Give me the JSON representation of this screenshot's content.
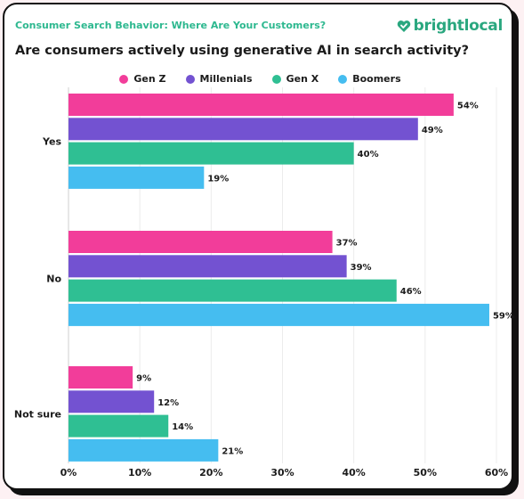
{
  "header": {
    "subtitle": "Consumer Search Behavior: Where Are Your Customers?",
    "title": "Are consumers actively using generative AI in search activity?",
    "logo_text": "brightlocal"
  },
  "colors": {
    "brand_green": "#2aa77f",
    "gen_z": "#f23d9a",
    "millenials": "#7352d1",
    "gen_x": "#2fbf93",
    "boomers": "#45bdf0"
  },
  "chart_data": {
    "type": "bar",
    "orientation": "horizontal",
    "categories": [
      "Yes",
      "No",
      "Not sure"
    ],
    "series": [
      {
        "name": "Gen Z",
        "values": [
          54,
          37,
          9
        ],
        "color": "#f23d9a"
      },
      {
        "name": "Millenials",
        "values": [
          49,
          39,
          12
        ],
        "color": "#7352d1"
      },
      {
        "name": "Gen X",
        "values": [
          40,
          46,
          14
        ],
        "color": "#2fbf93"
      },
      {
        "name": "Boomers",
        "values": [
          19,
          59,
          21
        ],
        "color": "#45bdf0"
      }
    ],
    "value_suffix": "%",
    "xlim": [
      0,
      60
    ],
    "xticks": [
      "0%",
      "10%",
      "20%",
      "30%",
      "40%",
      "50%",
      "60%"
    ],
    "grid": true,
    "legend": "top"
  }
}
